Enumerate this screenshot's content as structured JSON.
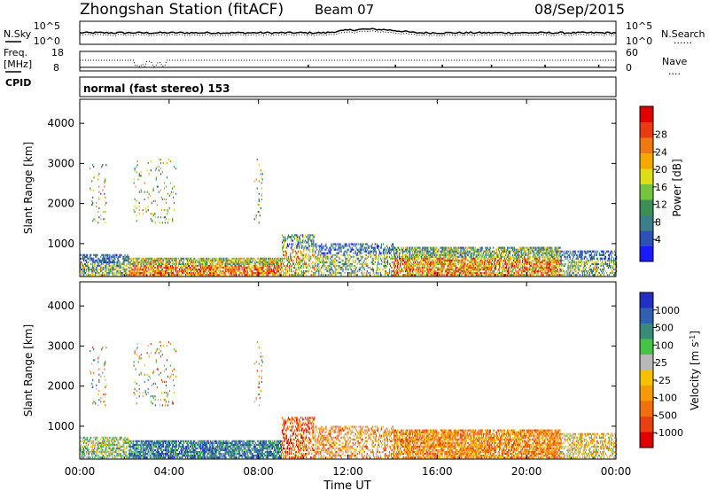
{
  "header": {
    "title": "Zhongshan Station (fitACF)",
    "beam": "Beam 07",
    "date": "08/Sep/2015"
  },
  "top_panels": {
    "nsky_label": "N.Sky",
    "nsearch_label": "N.Search",
    "nsearch_legend": "......",
    "freq_label": "Freq.",
    "freq_unit": "[MHz]",
    "nave_label": "Nave",
    "nave_legend": "....",
    "cpid_label": "CPID",
    "noise_ticks_left": [
      "10^5",
      "10^0"
    ],
    "noise_ticks_right": [
      "10^5",
      "10^0"
    ],
    "freq_ticks": [
      "18",
      "8"
    ],
    "nave_ticks": [
      "60",
      "0"
    ],
    "cpid_text": "normal (fast stereo) 153"
  },
  "chart_data": [
    {
      "type": "heatmap",
      "name": "power",
      "ylabel": "Slant Range [km]",
      "xlabel": "Time UT",
      "ylim": [
        180,
        4600
      ],
      "xlim": [
        0,
        24
      ],
      "y_ticks": [
        1000,
        2000,
        3000,
        4000
      ],
      "x_ticks": [
        "00:00",
        "04:00",
        "08:00",
        "12:00",
        "16:00",
        "20:00",
        "00:00"
      ],
      "colorbar": {
        "label": "Power [dB]",
        "ticks": [
          "4",
          "8",
          "12",
          "16",
          "20",
          "24",
          "28"
        ],
        "colors": [
          "#1a1aff",
          "#2d52b5",
          "#3a7f8a",
          "#3d8f56",
          "#73c43f",
          "#dddd1a",
          "#f5a800",
          "#f07810",
          "#e83c10",
          "#e00000"
        ]
      }
    },
    {
      "type": "heatmap",
      "name": "velocity",
      "ylabel": "Slant Range [km]",
      "xlabel": "Time UT",
      "ylim": [
        180,
        4600
      ],
      "xlim": [
        0,
        24
      ],
      "y_ticks": [
        1000,
        2000,
        3000,
        4000
      ],
      "x_ticks": [
        "00:00",
        "04:00",
        "08:00",
        "12:00",
        "16:00",
        "20:00",
        "00:00"
      ],
      "colorbar": {
        "label": "Velocity [m s^-1]",
        "ticks": [
          "1000",
          "500",
          "100",
          "25",
          "-25",
          "-100",
          "-500",
          "-1000"
        ],
        "colors": [
          "#2030c0",
          "#3060b0",
          "#3a8a7a",
          "#44c444",
          "#b8b8b8",
          "#f5c000",
          "#f59a00",
          "#f07010",
          "#e84010",
          "#e00000"
        ]
      }
    }
  ]
}
